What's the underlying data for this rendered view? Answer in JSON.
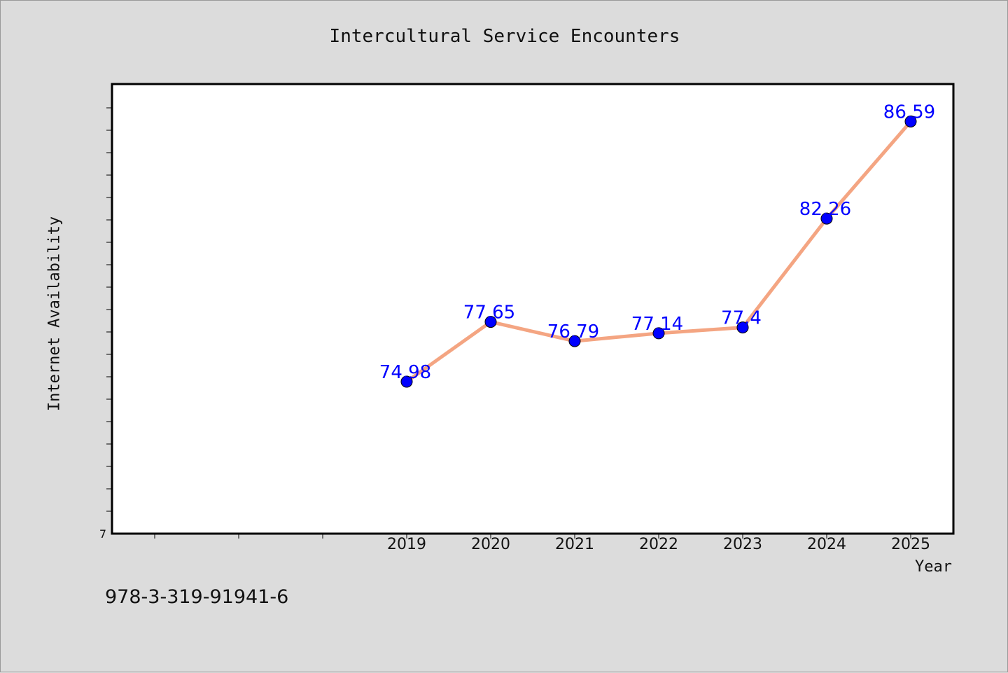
{
  "footer_text": "978-3-319-91941-6",
  "colors": {
    "background": "#dcdcdc",
    "plot_background": "#ffffff",
    "line": "#f4a582",
    "marker": "#0000ff",
    "data_label": "#0000ff"
  },
  "chart_data": {
    "type": "line",
    "title": "Intercultural Service Encounters",
    "xlabel": "Year",
    "ylabel": "Internet Availability",
    "x": [
      "2019",
      "2020",
      "2021",
      "2022",
      "2023",
      "2024",
      "2025"
    ],
    "y": [
      74.98,
      77.65,
      76.79,
      77.14,
      77.4,
      82.26,
      86.59
    ],
    "data_labels": [
      "74.98",
      "77.65",
      "76.79",
      "77.14",
      "77.4",
      "82.26",
      "86.59"
    ],
    "y_tick_labels": [
      "7"
    ],
    "y_bottom": 68.2,
    "y_per_tick": 1,
    "grid": false,
    "legend": "none"
  }
}
